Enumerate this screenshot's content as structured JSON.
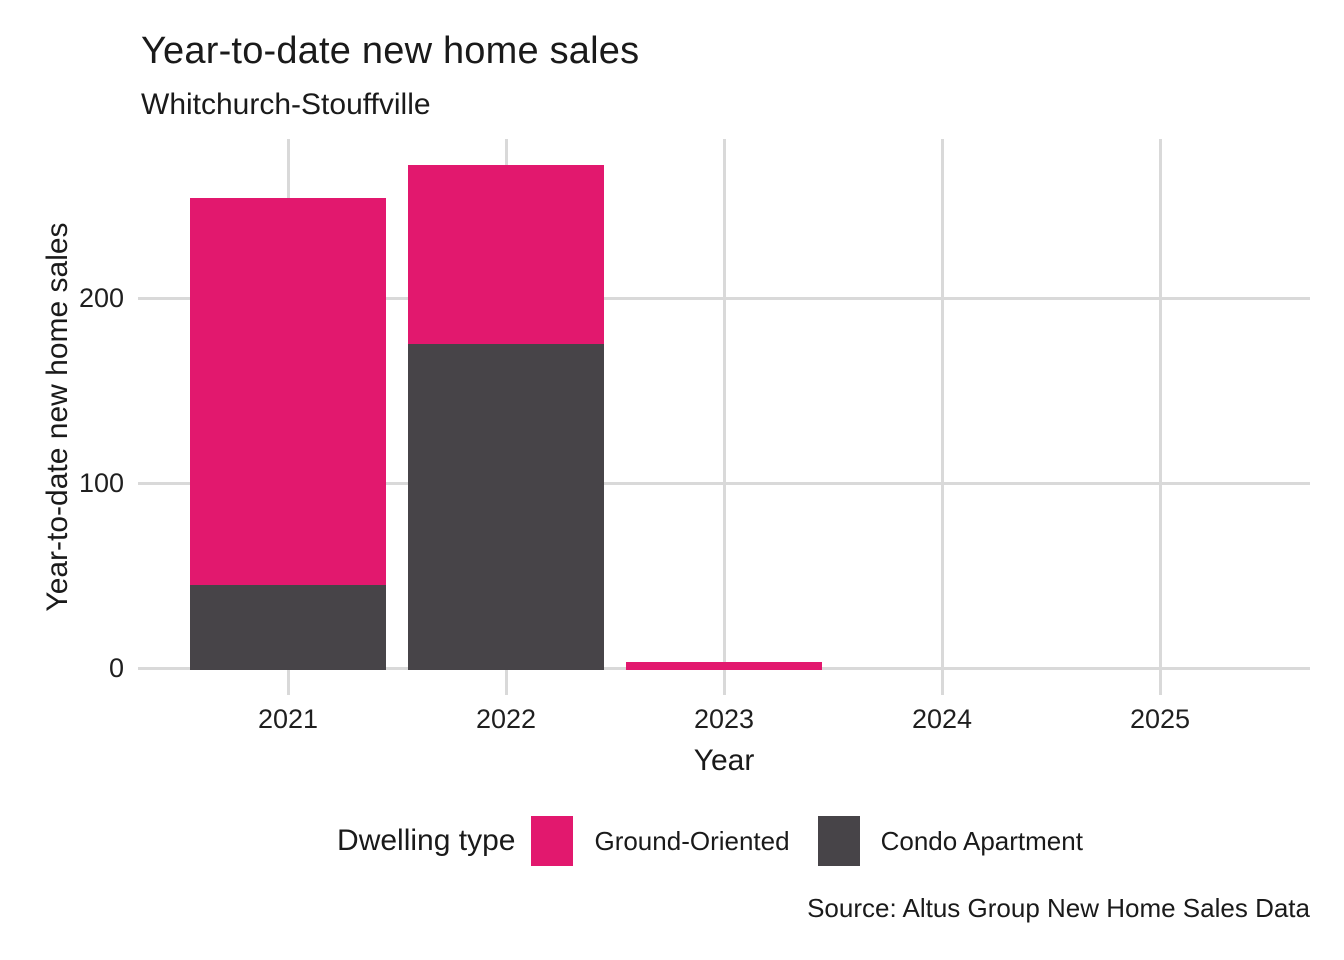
{
  "header": {
    "title": "Year-to-date new home sales",
    "subtitle": "Whitchurch-Stouffville"
  },
  "source_credit": "Source: Altus Group New Home Sales Data",
  "legend": {
    "title": "Dwelling type",
    "items": [
      {
        "label": "Ground-Oriented",
        "color": "#E2186E"
      },
      {
        "label": "Condo Apartment",
        "color": "#474448"
      }
    ]
  },
  "colors": {
    "ground_oriented": "#E2186E",
    "condo_apartment": "#474448",
    "gridline": "#D9D9D9",
    "text": "#1A1A1A",
    "background": "#FFFFFF"
  },
  "chart_data": {
    "type": "bar",
    "stacked": true,
    "title": "Year-to-date new home sales",
    "subtitle": "Whitchurch-Stouffville",
    "xlabel": "Year",
    "ylabel": "Year-to-date new home sales",
    "categories": [
      "2021",
      "2022",
      "2023",
      "2024",
      "2025"
    ],
    "series": [
      {
        "name": "Ground-Oriented",
        "color": "#E2186E",
        "values": [
          209,
          97,
          3,
          0,
          0
        ]
      },
      {
        "name": "Condo Apartment",
        "color": "#474448",
        "values": [
          45,
          175,
          0,
          0,
          0
        ]
      }
    ],
    "stack_bottom_to_top": [
      "Condo Apartment",
      "Ground-Oriented"
    ],
    "totals": [
      254,
      272,
      3,
      0,
      0
    ],
    "yticks": [
      0,
      100,
      200
    ],
    "ylim": [
      0,
      286
    ],
    "grid": true,
    "legend_position": "bottom"
  }
}
